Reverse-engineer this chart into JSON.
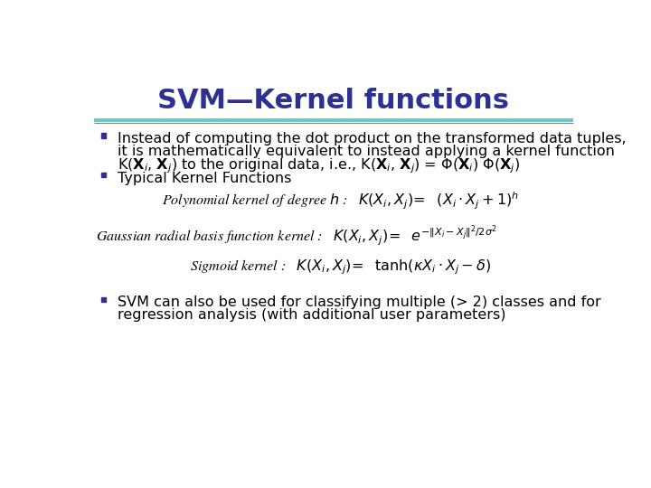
{
  "title": "SVM—Kernel functions",
  "title_color": "#2E3191",
  "title_fontsize": 22,
  "bg_color": "#FFFFFF",
  "line_color1": "#6DC8C8",
  "line_color2": "#888880",
  "bullet_color": "#2E3191",
  "b1l1": "Instead of computing the dot product on the transformed data tuples,",
  "b1l2": "it is mathematically equivalent to instead applying a kernel function",
  "b2": "Typical Kernel Functions",
  "b3l1": "SVM can also be used for classifying multiple (> 2) classes and for",
  "b3l2": "regression analysis (with additional user parameters)",
  "text_color": "#000000",
  "body_fontsize": 11.5
}
